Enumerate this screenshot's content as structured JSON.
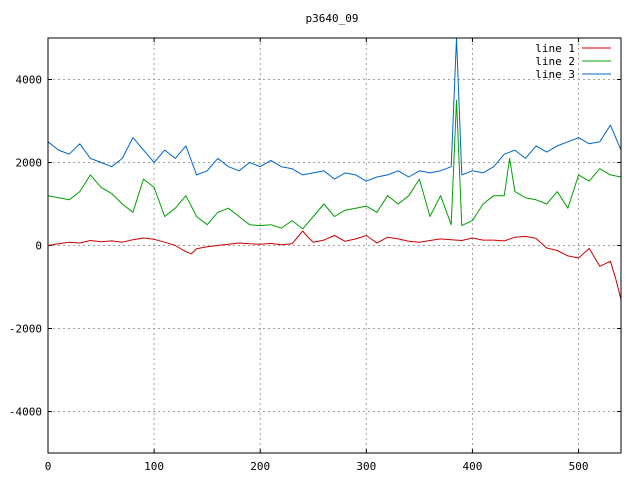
{
  "chart_data": {
    "type": "line",
    "title": "p3640_09",
    "xlabel": "",
    "ylabel": "",
    "xlim": [
      0,
      540
    ],
    "ylim": [
      -5000,
      5000
    ],
    "x_ticks": [
      0,
      100,
      200,
      300,
      400,
      500
    ],
    "y_ticks": [
      -4000,
      -2000,
      0,
      2000,
      4000
    ],
    "grid": true,
    "legend_position": "top-right",
    "series": [
      {
        "name": "line 1",
        "color": "#cc0000",
        "points": [
          [
            0,
            0
          ],
          [
            10,
            40
          ],
          [
            20,
            80
          ],
          [
            30,
            60
          ],
          [
            40,
            120
          ],
          [
            50,
            90
          ],
          [
            60,
            110
          ],
          [
            70,
            80
          ],
          [
            80,
            140
          ],
          [
            90,
            180
          ],
          [
            100,
            150
          ],
          [
            110,
            80
          ],
          [
            120,
            0
          ],
          [
            130,
            -150
          ],
          [
            135,
            -200
          ],
          [
            140,
            -80
          ],
          [
            150,
            -30
          ],
          [
            160,
            0
          ],
          [
            170,
            30
          ],
          [
            180,
            60
          ],
          [
            190,
            40
          ],
          [
            200,
            30
          ],
          [
            210,
            50
          ],
          [
            220,
            20
          ],
          [
            230,
            40
          ],
          [
            240,
            350
          ],
          [
            245,
            200
          ],
          [
            250,
            80
          ],
          [
            260,
            130
          ],
          [
            270,
            240
          ],
          [
            280,
            100
          ],
          [
            290,
            160
          ],
          [
            300,
            240
          ],
          [
            310,
            60
          ],
          [
            320,
            200
          ],
          [
            330,
            160
          ],
          [
            340,
            100
          ],
          [
            350,
            80
          ],
          [
            360,
            120
          ],
          [
            370,
            160
          ],
          [
            380,
            140
          ],
          [
            390,
            120
          ],
          [
            400,
            180
          ],
          [
            410,
            130
          ],
          [
            420,
            130
          ],
          [
            430,
            110
          ],
          [
            440,
            200
          ],
          [
            450,
            220
          ],
          [
            460,
            170
          ],
          [
            470,
            -60
          ],
          [
            480,
            -120
          ],
          [
            490,
            -250
          ],
          [
            500,
            -300
          ],
          [
            510,
            -70
          ],
          [
            520,
            -500
          ],
          [
            530,
            -380
          ],
          [
            535,
            -800
          ],
          [
            540,
            -1300
          ]
        ]
      },
      {
        "name": "line 2",
        "color": "#00a000",
        "points": [
          [
            0,
            1200
          ],
          [
            10,
            1150
          ],
          [
            20,
            1100
          ],
          [
            30,
            1300
          ],
          [
            40,
            1700
          ],
          [
            50,
            1400
          ],
          [
            60,
            1250
          ],
          [
            70,
            1000
          ],
          [
            80,
            800
          ],
          [
            90,
            1600
          ],
          [
            100,
            1400
          ],
          [
            110,
            700
          ],
          [
            120,
            900
          ],
          [
            130,
            1200
          ],
          [
            140,
            700
          ],
          [
            150,
            500
          ],
          [
            160,
            800
          ],
          [
            170,
            900
          ],
          [
            180,
            700
          ],
          [
            190,
            500
          ],
          [
            200,
            480
          ],
          [
            210,
            500
          ],
          [
            220,
            420
          ],
          [
            230,
            600
          ],
          [
            240,
            400
          ],
          [
            250,
            700
          ],
          [
            260,
            1000
          ],
          [
            270,
            700
          ],
          [
            280,
            850
          ],
          [
            290,
            900
          ],
          [
            300,
            950
          ],
          [
            310,
            800
          ],
          [
            320,
            1200
          ],
          [
            330,
            1000
          ],
          [
            340,
            1200
          ],
          [
            350,
            1600
          ],
          [
            360,
            700
          ],
          [
            370,
            1200
          ],
          [
            380,
            500
          ],
          [
            385,
            3500
          ],
          [
            390,
            480
          ],
          [
            400,
            600
          ],
          [
            410,
            1000
          ],
          [
            420,
            1200
          ],
          [
            430,
            1200
          ],
          [
            435,
            2100
          ],
          [
            440,
            1300
          ],
          [
            450,
            1150
          ],
          [
            460,
            1100
          ],
          [
            470,
            1000
          ],
          [
            480,
            1300
          ],
          [
            490,
            900
          ],
          [
            500,
            1700
          ],
          [
            510,
            1550
          ],
          [
            520,
            1850
          ],
          [
            530,
            1700
          ],
          [
            540,
            1650
          ]
        ]
      },
      {
        "name": "line 3",
        "color": "#0066cc",
        "points": [
          [
            0,
            2500
          ],
          [
            10,
            2300
          ],
          [
            20,
            2200
          ],
          [
            30,
            2450
          ],
          [
            40,
            2100
          ],
          [
            50,
            2000
          ],
          [
            60,
            1900
          ],
          [
            70,
            2100
          ],
          [
            80,
            2600
          ],
          [
            90,
            2300
          ],
          [
            100,
            2000
          ],
          [
            110,
            2300
          ],
          [
            120,
            2100
          ],
          [
            130,
            2400
          ],
          [
            140,
            1700
          ],
          [
            150,
            1800
          ],
          [
            160,
            2100
          ],
          [
            170,
            1900
          ],
          [
            180,
            1800
          ],
          [
            190,
            2000
          ],
          [
            200,
            1900
          ],
          [
            210,
            2050
          ],
          [
            220,
            1900
          ],
          [
            230,
            1850
          ],
          [
            240,
            1700
          ],
          [
            250,
            1750
          ],
          [
            260,
            1800
          ],
          [
            270,
            1600
          ],
          [
            280,
            1750
          ],
          [
            290,
            1700
          ],
          [
            300,
            1550
          ],
          [
            310,
            1650
          ],
          [
            320,
            1700
          ],
          [
            330,
            1800
          ],
          [
            340,
            1650
          ],
          [
            350,
            1800
          ],
          [
            360,
            1750
          ],
          [
            370,
            1800
          ],
          [
            380,
            1900
          ],
          [
            385,
            5000
          ],
          [
            390,
            1700
          ],
          [
            400,
            1800
          ],
          [
            410,
            1750
          ],
          [
            420,
            1900
          ],
          [
            430,
            2200
          ],
          [
            440,
            2300
          ],
          [
            450,
            2100
          ],
          [
            460,
            2400
          ],
          [
            470,
            2250
          ],
          [
            480,
            2400
          ],
          [
            490,
            2500
          ],
          [
            500,
            2600
          ],
          [
            510,
            2450
          ],
          [
            520,
            2500
          ],
          [
            530,
            2900
          ],
          [
            540,
            2300
          ]
        ]
      }
    ]
  }
}
